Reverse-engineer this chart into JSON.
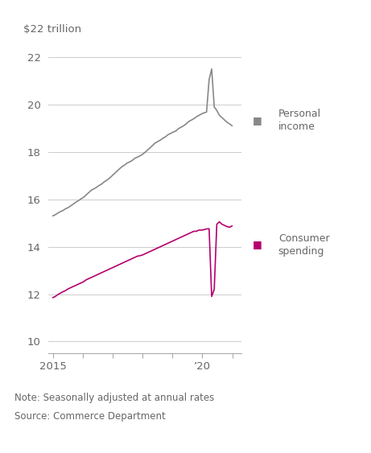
{
  "title": "$22 trillion",
  "note": "Note: Seasonally adjusted at annual rates",
  "source": "Source: Commerce Department",
  "ylim": [
    9.5,
    22.5
  ],
  "yticks": [
    10,
    12,
    14,
    16,
    18,
    20,
    22
  ],
  "personal_income_color": "#888888",
  "consumer_spending_color": "#b5006e",
  "background_color": "#ffffff",
  "text_color": "#666666",
  "grid_color": "#cccccc",
  "spine_color": "#aaaaaa",
  "personal_income": [
    15.3,
    15.35,
    15.42,
    15.48,
    15.53,
    15.6,
    15.65,
    15.72,
    15.8,
    15.88,
    15.94,
    16.02,
    16.08,
    16.18,
    16.28,
    16.38,
    16.44,
    16.5,
    16.58,
    16.64,
    16.73,
    16.8,
    16.88,
    16.98,
    17.08,
    17.18,
    17.28,
    17.38,
    17.44,
    17.53,
    17.58,
    17.64,
    17.73,
    17.78,
    17.83,
    17.9,
    17.98,
    18.08,
    18.18,
    18.28,
    18.38,
    18.44,
    18.5,
    18.58,
    18.64,
    18.73,
    18.78,
    18.84,
    18.88,
    18.98,
    19.04,
    19.1,
    19.18,
    19.28,
    19.34,
    19.4,
    19.48,
    19.54,
    19.6,
    19.65,
    19.68,
    21.05,
    21.5,
    19.9,
    19.75,
    19.55,
    19.45,
    19.35,
    19.25,
    19.18,
    19.1
  ],
  "consumer_spending": [
    11.85,
    11.9,
    11.98,
    12.04,
    12.1,
    12.15,
    12.22,
    12.27,
    12.32,
    12.37,
    12.42,
    12.47,
    12.52,
    12.6,
    12.65,
    12.7,
    12.75,
    12.8,
    12.85,
    12.9,
    12.95,
    13.0,
    13.05,
    13.1,
    13.15,
    13.2,
    13.25,
    13.3,
    13.35,
    13.4,
    13.45,
    13.5,
    13.55,
    13.6,
    13.62,
    13.65,
    13.7,
    13.75,
    13.8,
    13.85,
    13.9,
    13.95,
    14.0,
    14.05,
    14.1,
    14.15,
    14.2,
    14.25,
    14.3,
    14.35,
    14.4,
    14.45,
    14.5,
    14.55,
    14.6,
    14.65,
    14.65,
    14.7,
    14.7,
    14.72,
    14.75,
    14.76,
    11.9,
    12.2,
    14.95,
    15.05,
    14.95,
    14.9,
    14.85,
    14.82,
    14.88
  ]
}
